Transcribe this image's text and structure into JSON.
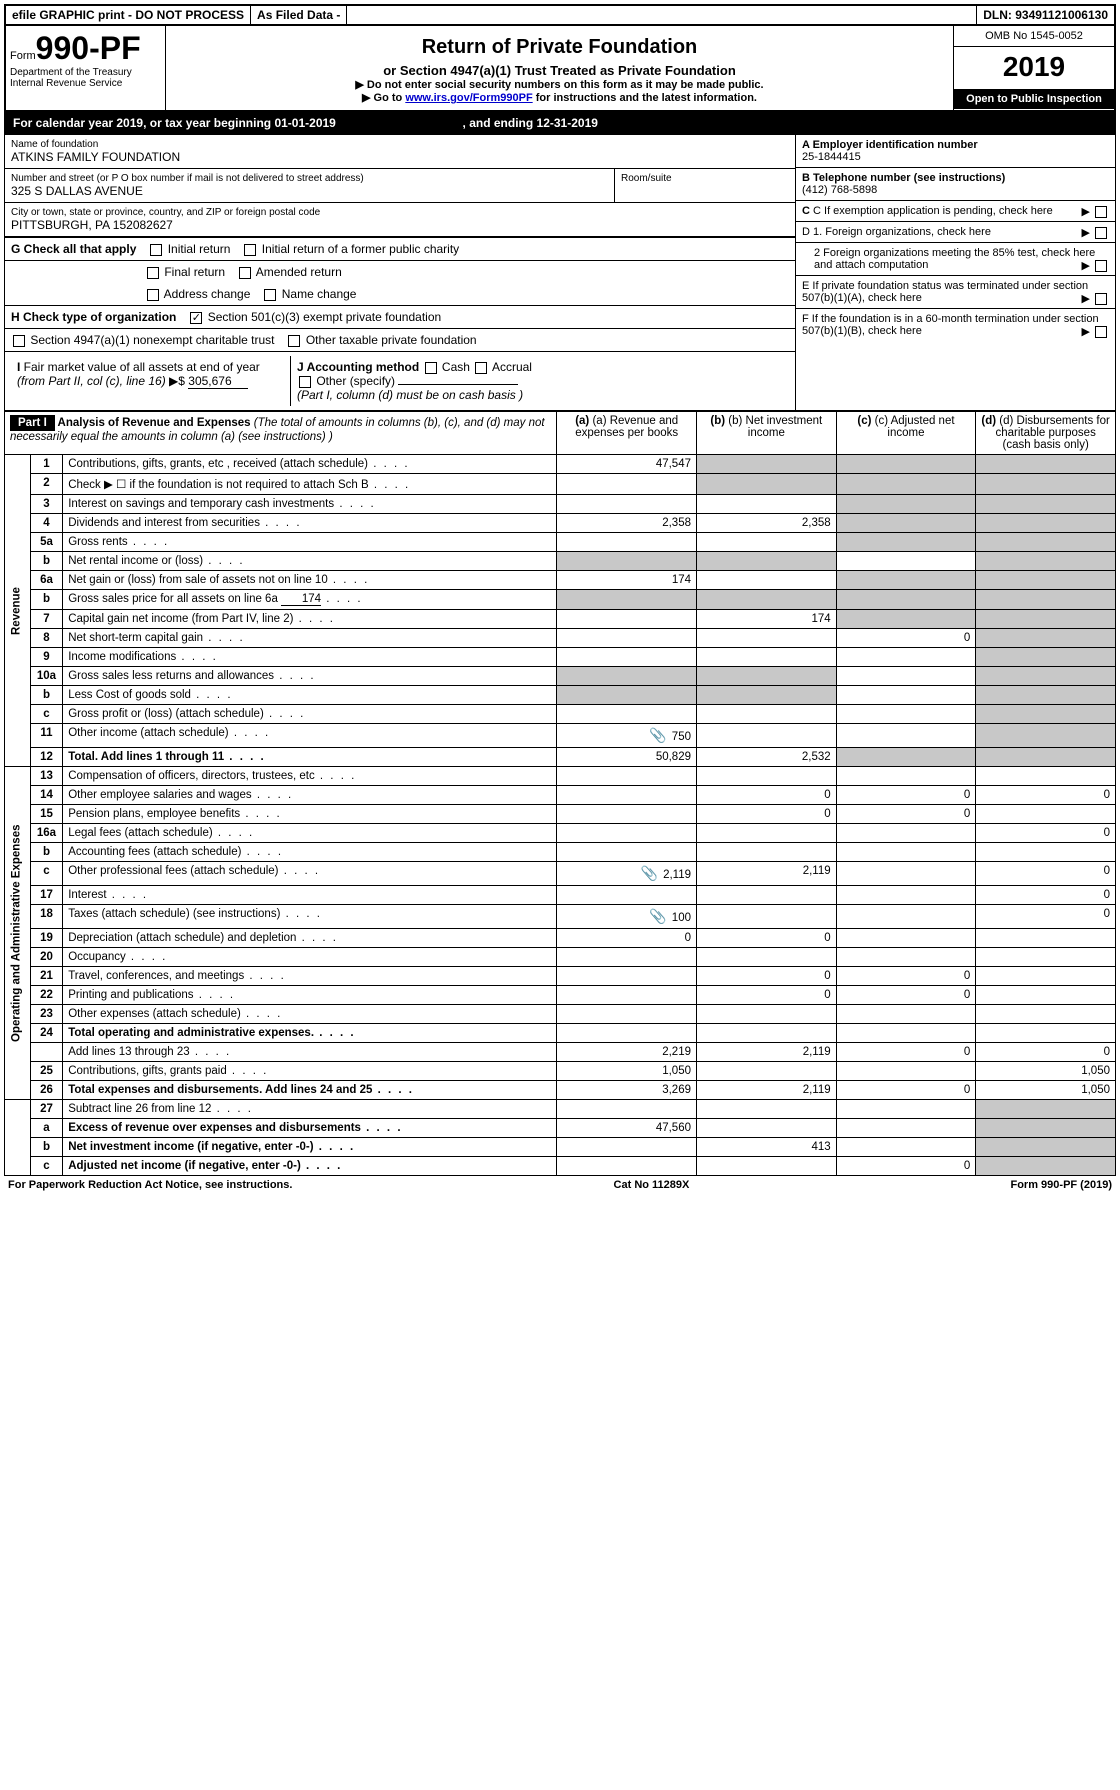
{
  "top": {
    "efile": "efile GRAPHIC print - DO NOT PROCESS",
    "asfiled": "As Filed Data -",
    "dln": "DLN: 93491121006130"
  },
  "header": {
    "form_prefix": "Form",
    "form_no": "990-PF",
    "dept": "Department of the Treasury",
    "irs": "Internal Revenue Service",
    "title": "Return of Private Foundation",
    "subtitle": "or Section 4947(a)(1) Trust Treated as Private Foundation",
    "note1": "▶ Do not enter social security numbers on this form as it may be made public.",
    "note2_pre": "▶ Go to ",
    "note2_link": "www.irs.gov/Form990PF",
    "note2_post": " for instructions and the latest information.",
    "omb": "OMB No 1545-0052",
    "year": "2019",
    "inspect": "Open to Public Inspection"
  },
  "cal": {
    "text_a": "For calendar year 2019, or tax year beginning ",
    "begin": "01-01-2019",
    "text_b": " , and ending ",
    "end": "12-31-2019"
  },
  "info": {
    "name_lbl": "Name of foundation",
    "name": "ATKINS FAMILY FOUNDATION",
    "addr_lbl": "Number and street (or P O  box number if mail is not delivered to street address)",
    "addr": "325 S DALLAS AVENUE",
    "room_lbl": "Room/suite",
    "city_lbl": "City or town, state or province, country, and ZIP or foreign postal code",
    "city": "PITTSBURGH, PA  152082627",
    "a_lbl": "A Employer identification number",
    "a_val": "25-1844415",
    "b_lbl": "B Telephone number (see instructions)",
    "b_val": "(412) 768-5898",
    "c_lbl": "C If exemption application is pending, check here"
  },
  "g": {
    "lbl": "G Check all that apply",
    "opts": [
      "Initial return",
      "Initial return of a former public charity",
      "Final return",
      "Amended return",
      "Address change",
      "Name change"
    ]
  },
  "h": {
    "lbl": "H Check type of organization",
    "opt1": "Section 501(c)(3) exempt private foundation",
    "opt2": "Section 4947(a)(1) nonexempt charitable trust",
    "opt3": "Other taxable private foundation"
  },
  "d": {
    "d1": "D 1. Foreign organizations, check here",
    "d2": "2 Foreign organizations meeting the 85% test, check here and attach computation",
    "e": "E  If private foundation status was terminated under section 507(b)(1)(A), check here",
    "f": "F  If the foundation is in a 60-month termination under section 507(b)(1)(B), check here"
  },
  "i": {
    "lbl": "I Fair market value of all assets at end of year (from Part II, col (c), line 16) ▶$ ",
    "val": "305,676"
  },
  "j": {
    "lbl": "J Accounting method",
    "cash": "Cash",
    "accrual": "Accrual",
    "other": "Other (specify)",
    "note": "(Part I, column (d) must be on cash basis )"
  },
  "part1": {
    "badge": "Part I",
    "title": "Analysis of Revenue and Expenses",
    "title_note": " (The total of amounts in columns (b), (c), and (d) may not necessarily equal the amounts in column (a) (see instructions) )",
    "col_a": "(a) Revenue and expenses per books",
    "col_b": "(b) Net investment income",
    "col_c": "(c) Adjusted net income",
    "col_d": "(d) Disbursements for charitable purposes (cash basis only)"
  },
  "side_labels": {
    "rev": "Revenue",
    "exp": "Operating and Administrative Expenses"
  },
  "rows": {
    "r1": {
      "n": "1",
      "t": "Contributions, gifts, grants, etc , received (attach schedule)",
      "a": "47,547"
    },
    "r2": {
      "n": "2",
      "t": "Check ▶ ☐ if the foundation is not required to attach Sch B"
    },
    "r3": {
      "n": "3",
      "t": "Interest on savings and temporary cash investments"
    },
    "r4": {
      "n": "4",
      "t": "Dividends and interest from securities",
      "a": "2,358",
      "b": "2,358"
    },
    "r5a": {
      "n": "5a",
      "t": "Gross rents"
    },
    "r5b": {
      "n": "b",
      "t": "Net rental income or (loss)"
    },
    "r6a": {
      "n": "6a",
      "t": "Net gain or (loss) from sale of assets not on line 10",
      "a": "174"
    },
    "r6b": {
      "n": "b",
      "t": "Gross sales price for all assets on line 6a",
      "inline": "174"
    },
    "r7": {
      "n": "7",
      "t": "Capital gain net income (from Part IV, line 2)",
      "b": "174"
    },
    "r8": {
      "n": "8",
      "t": "Net short-term capital gain",
      "c": "0"
    },
    "r9": {
      "n": "9",
      "t": "Income modifications"
    },
    "r10a": {
      "n": "10a",
      "t": "Gross sales less returns and allowances"
    },
    "r10b": {
      "n": "b",
      "t": "Less  Cost of goods sold"
    },
    "r10c": {
      "n": "c",
      "t": "Gross profit or (loss) (attach schedule)"
    },
    "r11": {
      "n": "11",
      "t": "Other income (attach schedule)",
      "a": "750",
      "icon": true
    },
    "r12": {
      "n": "12",
      "t": "Total. Add lines 1 through 11",
      "a": "50,829",
      "b": "2,532",
      "bold": true
    },
    "r13": {
      "n": "13",
      "t": "Compensation of officers, directors, trustees, etc"
    },
    "r14": {
      "n": "14",
      "t": "Other employee salaries and wages",
      "b": "0",
      "c": "0",
      "d": "0"
    },
    "r15": {
      "n": "15",
      "t": "Pension plans, employee benefits",
      "b": "0",
      "c": "0"
    },
    "r16a": {
      "n": "16a",
      "t": "Legal fees (attach schedule)",
      "d": "0"
    },
    "r16b": {
      "n": "b",
      "t": "Accounting fees (attach schedule)"
    },
    "r16c": {
      "n": "c",
      "t": "Other professional fees (attach schedule)",
      "a": "2,119",
      "b": "2,119",
      "d": "0",
      "icon": true
    },
    "r17": {
      "n": "17",
      "t": "Interest",
      "d": "0"
    },
    "r18": {
      "n": "18",
      "t": "Taxes (attach schedule) (see instructions)",
      "a": "100",
      "d": "0",
      "icon": true
    },
    "r19": {
      "n": "19",
      "t": "Depreciation (attach schedule) and depletion",
      "a": "0",
      "b": "0"
    },
    "r20": {
      "n": "20",
      "t": "Occupancy"
    },
    "r21": {
      "n": "21",
      "t": "Travel, conferences, and meetings",
      "b": "0",
      "c": "0"
    },
    "r22": {
      "n": "22",
      "t": "Printing and publications",
      "b": "0",
      "c": "0"
    },
    "r23": {
      "n": "23",
      "t": "Other expenses (attach schedule)"
    },
    "r24": {
      "n": "24",
      "t": "Total operating and administrative expenses.",
      "bold": true
    },
    "r24b": {
      "n": "",
      "t": "Add lines 13 through 23",
      "a": "2,219",
      "b": "2,119",
      "c": "0",
      "d": "0"
    },
    "r25": {
      "n": "25",
      "t": "Contributions, gifts, grants paid",
      "a": "1,050",
      "d": "1,050"
    },
    "r26": {
      "n": "26",
      "t": "Total expenses and disbursements. Add lines 24 and 25",
      "a": "3,269",
      "b": "2,119",
      "c": "0",
      "d": "1,050",
      "bold": true
    },
    "r27": {
      "n": "27",
      "t": "Subtract line 26 from line 12"
    },
    "r27a": {
      "n": "a",
      "t": "Excess of revenue over expenses and disbursements",
      "a": "47,560",
      "bold": true
    },
    "r27b": {
      "n": "b",
      "t": "Net investment income (if negative, enter -0-)",
      "b": "413",
      "bold": true
    },
    "r27c": {
      "n": "c",
      "t": "Adjusted net income (if negative, enter -0-)",
      "c": "0",
      "bold": true
    }
  },
  "footer": {
    "left": "For Paperwork Reduction Act Notice, see instructions.",
    "mid": "Cat No 11289X",
    "right": "Form 990-PF (2019)"
  }
}
